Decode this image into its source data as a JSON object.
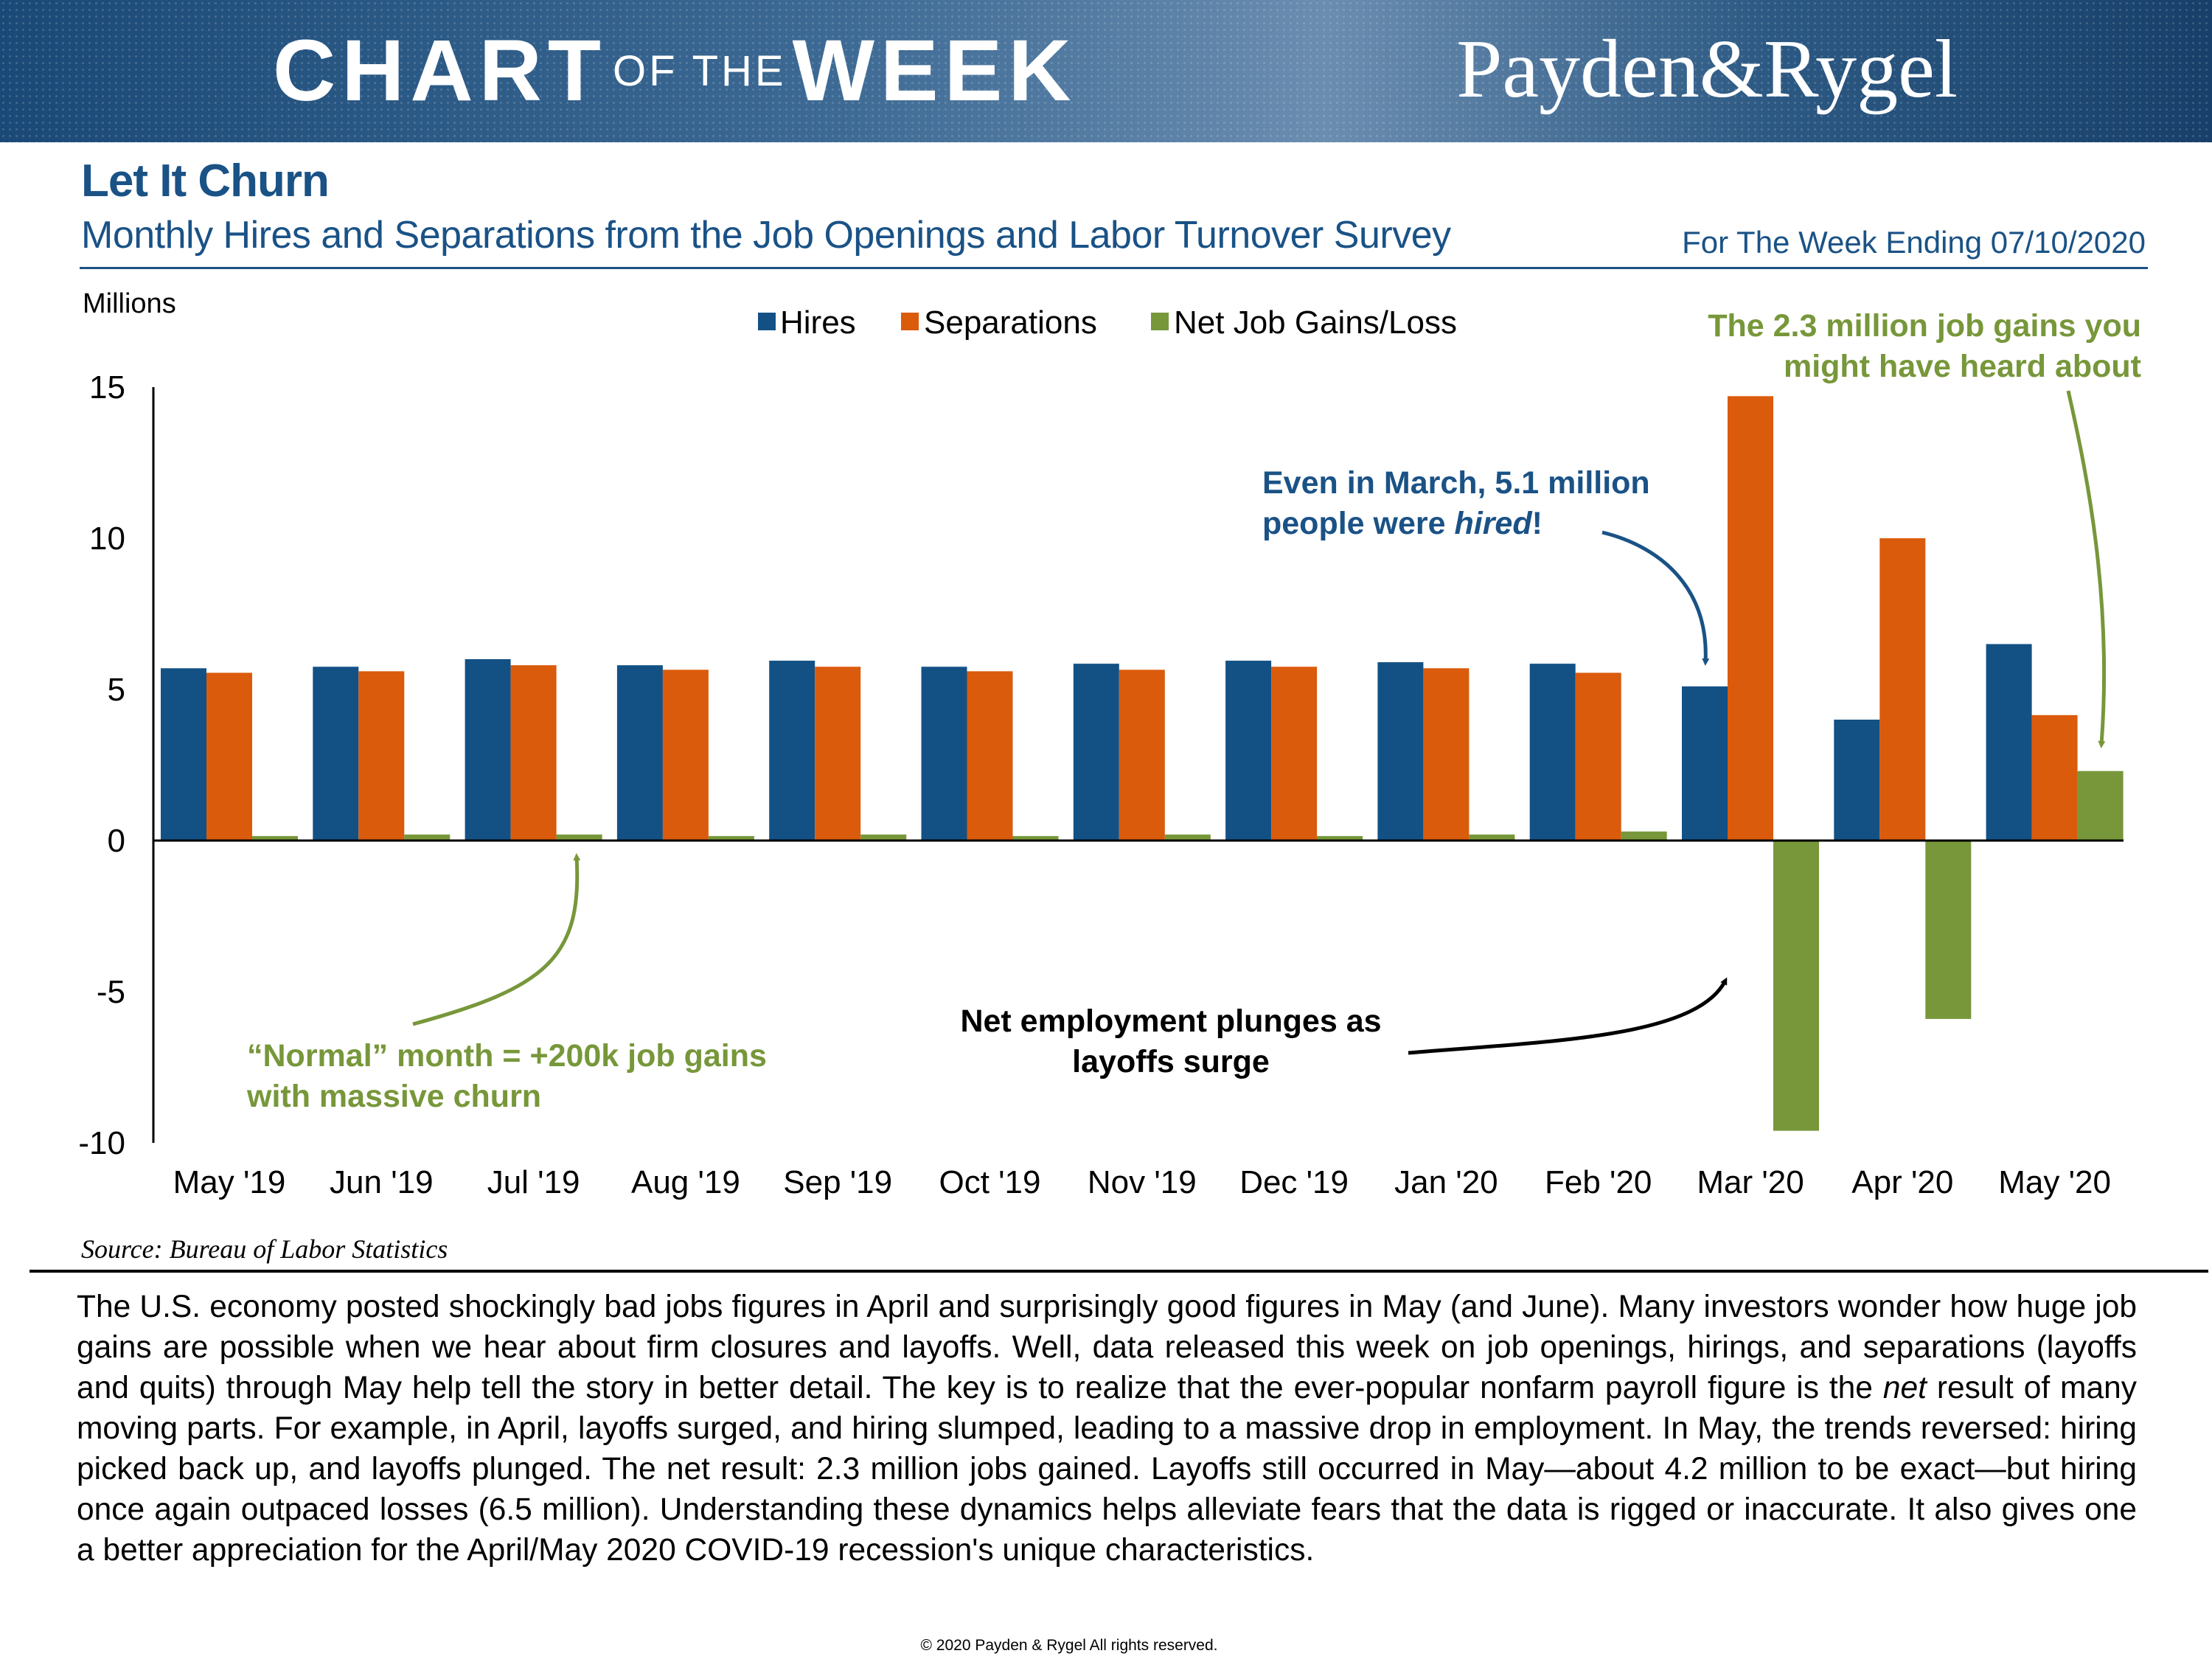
{
  "banner": {
    "part1": "CHART",
    "part2": "OF THE",
    "part3": "WEEK",
    "logo": "Payden&Rygel"
  },
  "title": "Let It Churn",
  "subtitle": "Monthly Hires and Separations from the Job Openings and Labor Turnover Survey",
  "week_ending": "For The Week Ending 07/10/2020",
  "colors": {
    "hires": "#135185",
    "separations": "#da5b0c",
    "net": "#77973a",
    "title_blue": "#1a5286"
  },
  "annotations": {
    "march": [
      "Even in March, 5.1 million",
      "people were ",
      "hired",
      "!"
    ],
    "may": [
      "The 2.3 million job gains you",
      "might have heard about"
    ],
    "normal": [
      "“Normal” month = +200k job gains",
      "with massive churn"
    ],
    "plunge": [
      "Net employment plunges as",
      "layoffs surge"
    ]
  },
  "source": "Source: Bureau of Labor Statistics",
  "body": {
    "p1": "The U.S. economy posted shockingly bad jobs figures in April and surprisingly good figures in May (and June). Many investors wonder how huge job gains are possible when we hear about firm closures and layoffs. Well, data released this week on job openings, hirings, and separations (layoffs and quits) through May help tell the story in better detail. The key is to realize that the ever-popular nonfarm payroll figure is the ",
    "net_word": "net",
    "p2": " result of many moving parts. For example, in April, layoffs surged, and hiring slumped, leading to a massive drop in employment. In May, the trends reversed:  hiring picked back up, and layoffs plunged. The net result: 2.3 million jobs gained. Layoffs still occurred in May—about 4.2 million to be exact—but hiring once again outpaced losses (6.5 million). Understanding these dynamics helps alleviate fears that the data is rigged or inaccurate. It also gives one a better appreciation for the April/May 2020 COVID-19 recession's unique characteristics."
  },
  "copyright": "© 2020 Payden & Rygel All rights reserved.",
  "chart_data": {
    "type": "bar",
    "ylabel": "Millions",
    "ylim": [
      -10,
      15
    ],
    "yticks": [
      15,
      10,
      5,
      0,
      -5,
      -10
    ],
    "categories": [
      "May '19",
      "Jun '19",
      "Jul '19",
      "Aug '19",
      "Sep '19",
      "Oct '19",
      "Nov '19",
      "Dec '19",
      "Jan '20",
      "Feb '20",
      "Mar '20",
      "Apr '20",
      "May '20"
    ],
    "series": [
      {
        "name": "Hires",
        "values": [
          5.7,
          5.75,
          6.0,
          5.8,
          5.95,
          5.75,
          5.85,
          5.95,
          5.9,
          5.85,
          5.1,
          4.0,
          6.5
        ]
      },
      {
        "name": "Separations",
        "values": [
          5.55,
          5.6,
          5.8,
          5.65,
          5.75,
          5.6,
          5.65,
          5.75,
          5.7,
          5.55,
          14.7,
          10.0,
          4.15
        ]
      },
      {
        "name": "Net Job Gains/Loss",
        "values": [
          0.15,
          0.2,
          0.2,
          0.15,
          0.2,
          0.15,
          0.2,
          0.15,
          0.2,
          0.3,
          -9.6,
          -5.9,
          2.3
        ]
      }
    ]
  }
}
